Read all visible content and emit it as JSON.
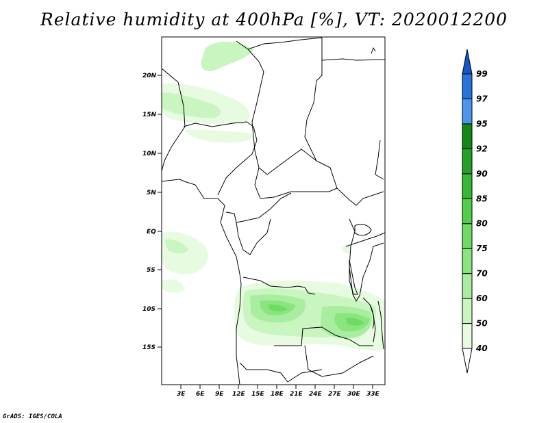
{
  "title": "Relative humidity at 400hPa [%], VT: 2020012200",
  "credit": "GrADS: IGES/COLA",
  "map": {
    "lat_labels": [
      "20N",
      "15N",
      "10N",
      "5N",
      "EQ",
      "5S",
      "10S",
      "15S"
    ],
    "lon_labels": [
      "3E",
      "6E",
      "9E",
      "12E",
      "15E",
      "18E",
      "21E",
      "24E",
      "27E",
      "30E",
      "33E"
    ]
  },
  "legend": {
    "levels": [
      "40",
      "50",
      "60",
      "70",
      "75",
      "80",
      "85",
      "90",
      "92",
      "95",
      "97",
      "99"
    ],
    "colors": [
      "#ffffff",
      "#e7fbe1",
      "#c9f5c0",
      "#a9eea0",
      "#8be57f",
      "#6edc62",
      "#50cf48",
      "#37b835",
      "#259f27",
      "#138817",
      "#4a96ec",
      "#2874dd",
      "#1257c6"
    ]
  }
}
